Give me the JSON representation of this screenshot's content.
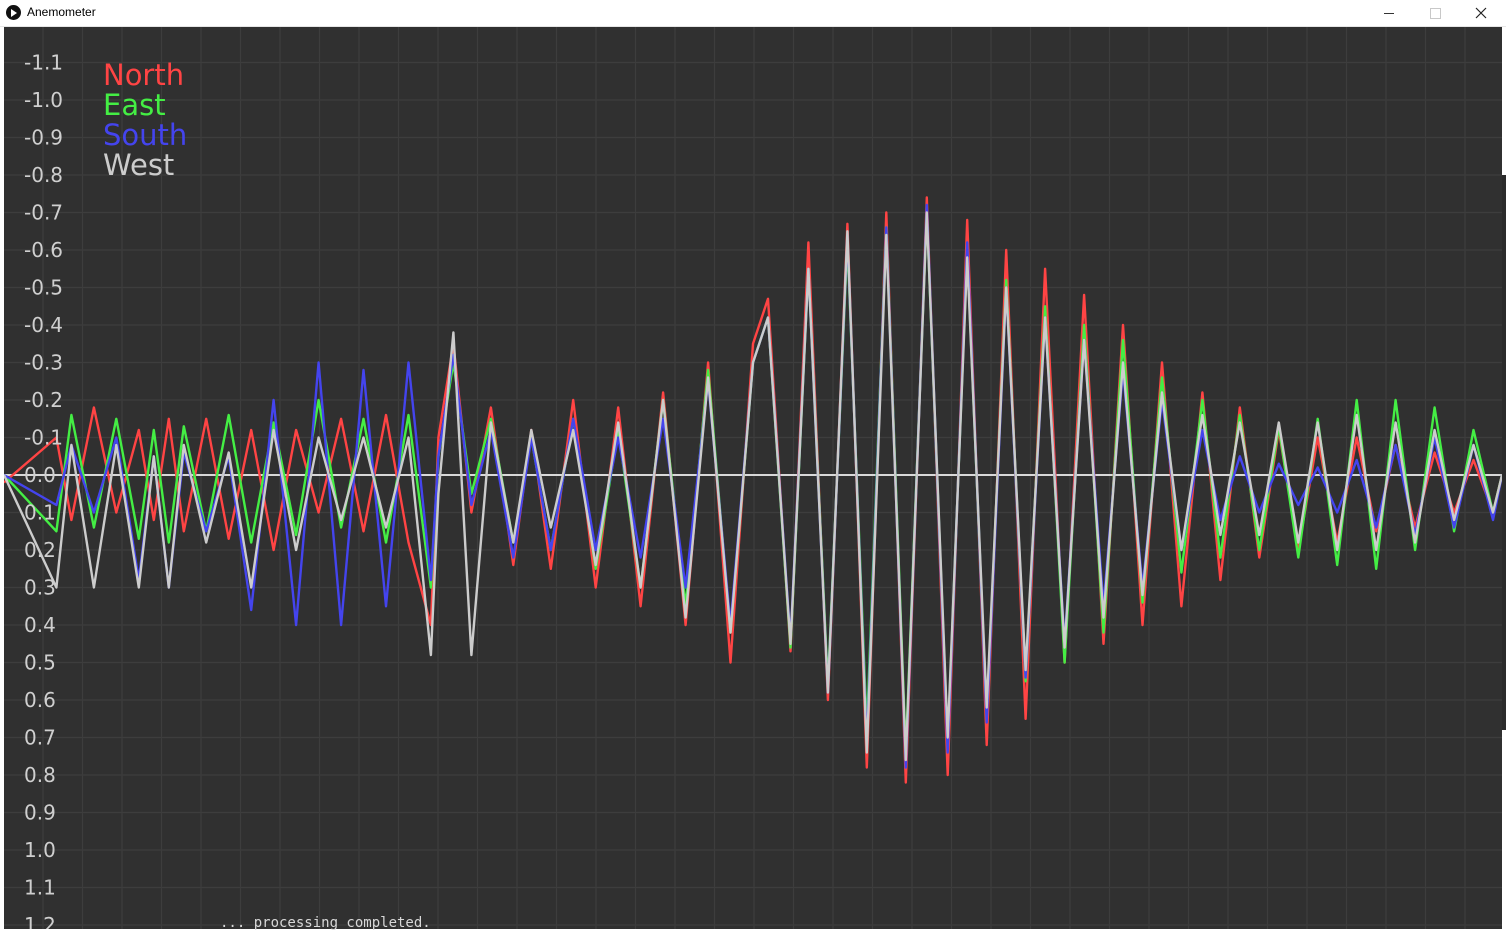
{
  "window": {
    "title": "Anemometer",
    "controls": {
      "minimize": "minimize-icon",
      "maximize": "maximize-icon",
      "close": "close-icon"
    }
  },
  "bottom_text": "... processing completed.",
  "colors": {
    "background": "#303030",
    "grid": "#3d3d3d",
    "axis_text": "#cfcfcf",
    "zero_line": "#d8d8d8"
  },
  "chart_data": {
    "type": "line",
    "title": "",
    "xlabel": "",
    "ylabel": "",
    "ylim": [
      -1.1,
      1.2
    ],
    "y_inverted": true,
    "y_tick_labels": [
      "-1.1",
      "-1.0",
      "-0.9",
      "-0.8",
      "-0.7",
      "-0.6",
      "-0.5",
      "-0.4",
      "-0.3",
      "-0.2",
      "-0.1",
      "0.0",
      "0.1",
      "0.2",
      "0.3",
      "0.4",
      "0.5",
      "0.6",
      "0.7",
      "0.8",
      "0.9",
      "1.0",
      "1.1",
      "1.2"
    ],
    "grid": true,
    "legend": {
      "position": "top-left",
      "entries": [
        "North",
        "East",
        "South",
        "West"
      ]
    },
    "x_domain": [
      0,
      1
    ],
    "series": [
      {
        "name": "North",
        "color": "#ff4444",
        "x": [
          0,
          0.035,
          0.045,
          0.06,
          0.075,
          0.09,
          0.1,
          0.11,
          0.12,
          0.135,
          0.15,
          0.165,
          0.18,
          0.195,
          0.21,
          0.225,
          0.24,
          0.255,
          0.27,
          0.285,
          0.29,
          0.3,
          0.312,
          0.325,
          0.34,
          0.352,
          0.365,
          0.38,
          0.395,
          0.41,
          0.425,
          0.44,
          0.455,
          0.47,
          0.485,
          0.5,
          0.51,
          0.525,
          0.537,
          0.55,
          0.563,
          0.576,
          0.589,
          0.602,
          0.616,
          0.63,
          0.643,
          0.656,
          0.669,
          0.682,
          0.695,
          0.708,
          0.721,
          0.734,
          0.747,
          0.76,
          0.773,
          0.786,
          0.8,
          0.812,
          0.825,
          0.838,
          0.851,
          0.864,
          0.877,
          0.89,
          0.903,
          0.916,
          0.929,
          0.942,
          0.955,
          0.968,
          0.981,
          0.994,
          1.0
        ],
        "y": [
          0.02,
          -0.1,
          0.12,
          -0.18,
          0.1,
          -0.12,
          0.12,
          -0.15,
          0.15,
          -0.15,
          0.17,
          -0.12,
          0.2,
          -0.12,
          0.1,
          -0.15,
          0.15,
          -0.16,
          0.18,
          0.4,
          -0.1,
          -0.35,
          0.1,
          -0.18,
          0.24,
          -0.12,
          0.25,
          -0.2,
          0.3,
          -0.18,
          0.35,
          -0.22,
          0.4,
          -0.3,
          0.5,
          -0.35,
          -0.47,
          0.47,
          -0.62,
          0.6,
          -0.67,
          0.78,
          -0.7,
          0.82,
          -0.74,
          0.8,
          -0.68,
          0.72,
          -0.6,
          0.65,
          -0.55,
          0.5,
          -0.48,
          0.45,
          -0.4,
          0.4,
          -0.3,
          0.35,
          -0.22,
          0.28,
          -0.18,
          0.22,
          -0.12,
          0.2,
          -0.1,
          0.18,
          -0.1,
          0.15,
          -0.08,
          0.14,
          -0.06,
          0.1,
          -0.04,
          0.1,
          0.0
        ]
      },
      {
        "name": "East",
        "color": "#44ee44",
        "x": [
          0,
          0.035,
          0.045,
          0.06,
          0.075,
          0.09,
          0.1,
          0.11,
          0.12,
          0.135,
          0.15,
          0.165,
          0.18,
          0.195,
          0.21,
          0.225,
          0.24,
          0.255,
          0.27,
          0.285,
          0.29,
          0.3,
          0.312,
          0.325,
          0.34,
          0.352,
          0.365,
          0.38,
          0.395,
          0.41,
          0.425,
          0.44,
          0.455,
          0.47,
          0.485,
          0.5,
          0.51,
          0.525,
          0.537,
          0.55,
          0.563,
          0.576,
          0.589,
          0.602,
          0.616,
          0.63,
          0.643,
          0.656,
          0.669,
          0.682,
          0.695,
          0.708,
          0.721,
          0.734,
          0.747,
          0.76,
          0.773,
          0.786,
          0.8,
          0.812,
          0.825,
          0.838,
          0.851,
          0.864,
          0.877,
          0.89,
          0.903,
          0.916,
          0.929,
          0.942,
          0.955,
          0.968,
          0.981,
          0.994,
          1.0
        ],
        "y": [
          0.0,
          0.15,
          -0.16,
          0.14,
          -0.15,
          0.17,
          -0.12,
          0.18,
          -0.13,
          0.15,
          -0.16,
          0.18,
          -0.14,
          0.16,
          -0.2,
          0.14,
          -0.15,
          0.18,
          -0.16,
          0.3,
          -0.05,
          -0.3,
          0.05,
          -0.15,
          0.18,
          -0.1,
          0.2,
          -0.15,
          0.25,
          -0.12,
          0.3,
          -0.2,
          0.35,
          -0.28,
          0.42,
          -0.3,
          -0.42,
          0.46,
          -0.55,
          0.56,
          -0.62,
          0.68,
          -0.66,
          0.74,
          -0.7,
          0.72,
          -0.6,
          0.65,
          -0.52,
          0.55,
          -0.45,
          0.5,
          -0.4,
          0.42,
          -0.36,
          0.34,
          -0.26,
          0.26,
          -0.2,
          0.22,
          -0.16,
          0.2,
          -0.13,
          0.22,
          -0.15,
          0.24,
          -0.2,
          0.25,
          -0.2,
          0.2,
          -0.18,
          0.15,
          -0.12,
          0.1,
          0.0
        ]
      },
      {
        "name": "South",
        "color": "#4444ee",
        "x": [
          0,
          0.035,
          0.045,
          0.06,
          0.075,
          0.09,
          0.1,
          0.11,
          0.12,
          0.135,
          0.15,
          0.165,
          0.18,
          0.195,
          0.21,
          0.225,
          0.24,
          0.255,
          0.27,
          0.285,
          0.29,
          0.3,
          0.312,
          0.325,
          0.34,
          0.352,
          0.365,
          0.38,
          0.395,
          0.41,
          0.425,
          0.44,
          0.455,
          0.47,
          0.485,
          0.5,
          0.51,
          0.525,
          0.537,
          0.55,
          0.563,
          0.576,
          0.589,
          0.602,
          0.616,
          0.63,
          0.643,
          0.656,
          0.669,
          0.682,
          0.695,
          0.708,
          0.721,
          0.734,
          0.747,
          0.76,
          0.773,
          0.786,
          0.8,
          0.812,
          0.825,
          0.838,
          0.851,
          0.864,
          0.877,
          0.89,
          0.903,
          0.916,
          0.929,
          0.942,
          0.955,
          0.968,
          0.981,
          0.994,
          1.0
        ],
        "y": [
          0.0,
          0.08,
          -0.08,
          0.1,
          -0.1,
          0.28,
          -0.05,
          0.3,
          -0.06,
          0.15,
          -0.05,
          0.36,
          -0.2,
          0.4,
          -0.3,
          0.4,
          -0.28,
          0.35,
          -0.3,
          0.28,
          -0.05,
          -0.32,
          0.08,
          -0.12,
          0.22,
          -0.1,
          0.2,
          -0.15,
          0.2,
          -0.1,
          0.22,
          -0.15,
          0.3,
          -0.25,
          0.4,
          -0.3,
          -0.42,
          0.44,
          -0.55,
          0.58,
          -0.64,
          0.72,
          -0.66,
          0.78,
          -0.72,
          0.74,
          -0.62,
          0.66,
          -0.5,
          0.54,
          -0.42,
          0.45,
          -0.36,
          0.35,
          -0.28,
          0.3,
          -0.2,
          0.2,
          -0.12,
          0.12,
          -0.05,
          0.1,
          -0.03,
          0.08,
          -0.02,
          0.1,
          -0.04,
          0.14,
          -0.08,
          0.16,
          -0.1,
          0.14,
          -0.08,
          0.12,
          0.0
        ]
      },
      {
        "name": "West",
        "color": "#cccccc",
        "x": [
          0,
          0.035,
          0.045,
          0.06,
          0.075,
          0.09,
          0.1,
          0.11,
          0.12,
          0.135,
          0.15,
          0.165,
          0.18,
          0.195,
          0.21,
          0.225,
          0.24,
          0.255,
          0.27,
          0.285,
          0.29,
          0.3,
          0.312,
          0.325,
          0.34,
          0.352,
          0.365,
          0.38,
          0.395,
          0.41,
          0.425,
          0.44,
          0.455,
          0.47,
          0.485,
          0.5,
          0.51,
          0.525,
          0.537,
          0.55,
          0.563,
          0.576,
          0.589,
          0.602,
          0.616,
          0.63,
          0.643,
          0.656,
          0.669,
          0.682,
          0.695,
          0.708,
          0.721,
          0.734,
          0.747,
          0.76,
          0.773,
          0.786,
          0.8,
          0.812,
          0.825,
          0.838,
          0.851,
          0.864,
          0.877,
          0.89,
          0.903,
          0.916,
          0.929,
          0.942,
          0.955,
          0.968,
          0.981,
          0.994,
          1.0
        ],
        "y": [
          0.0,
          0.3,
          -0.08,
          0.3,
          -0.08,
          0.3,
          -0.05,
          0.3,
          -0.08,
          0.18,
          -0.06,
          0.3,
          -0.12,
          0.2,
          -0.1,
          0.12,
          -0.1,
          0.14,
          -0.1,
          0.48,
          0.05,
          -0.38,
          0.48,
          -0.14,
          0.18,
          -0.12,
          0.14,
          -0.12,
          0.24,
          -0.14,
          0.3,
          -0.2,
          0.38,
          -0.26,
          0.42,
          -0.3,
          -0.42,
          0.45,
          -0.55,
          0.58,
          -0.65,
          0.74,
          -0.64,
          0.76,
          -0.7,
          0.7,
          -0.58,
          0.62,
          -0.5,
          0.52,
          -0.42,
          0.46,
          -0.36,
          0.38,
          -0.3,
          0.32,
          -0.22,
          0.2,
          -0.16,
          0.16,
          -0.14,
          0.16,
          -0.14,
          0.18,
          -0.14,
          0.2,
          -0.16,
          0.2,
          -0.14,
          0.18,
          -0.12,
          0.12,
          -0.08,
          0.1,
          0.0
        ]
      }
    ]
  }
}
